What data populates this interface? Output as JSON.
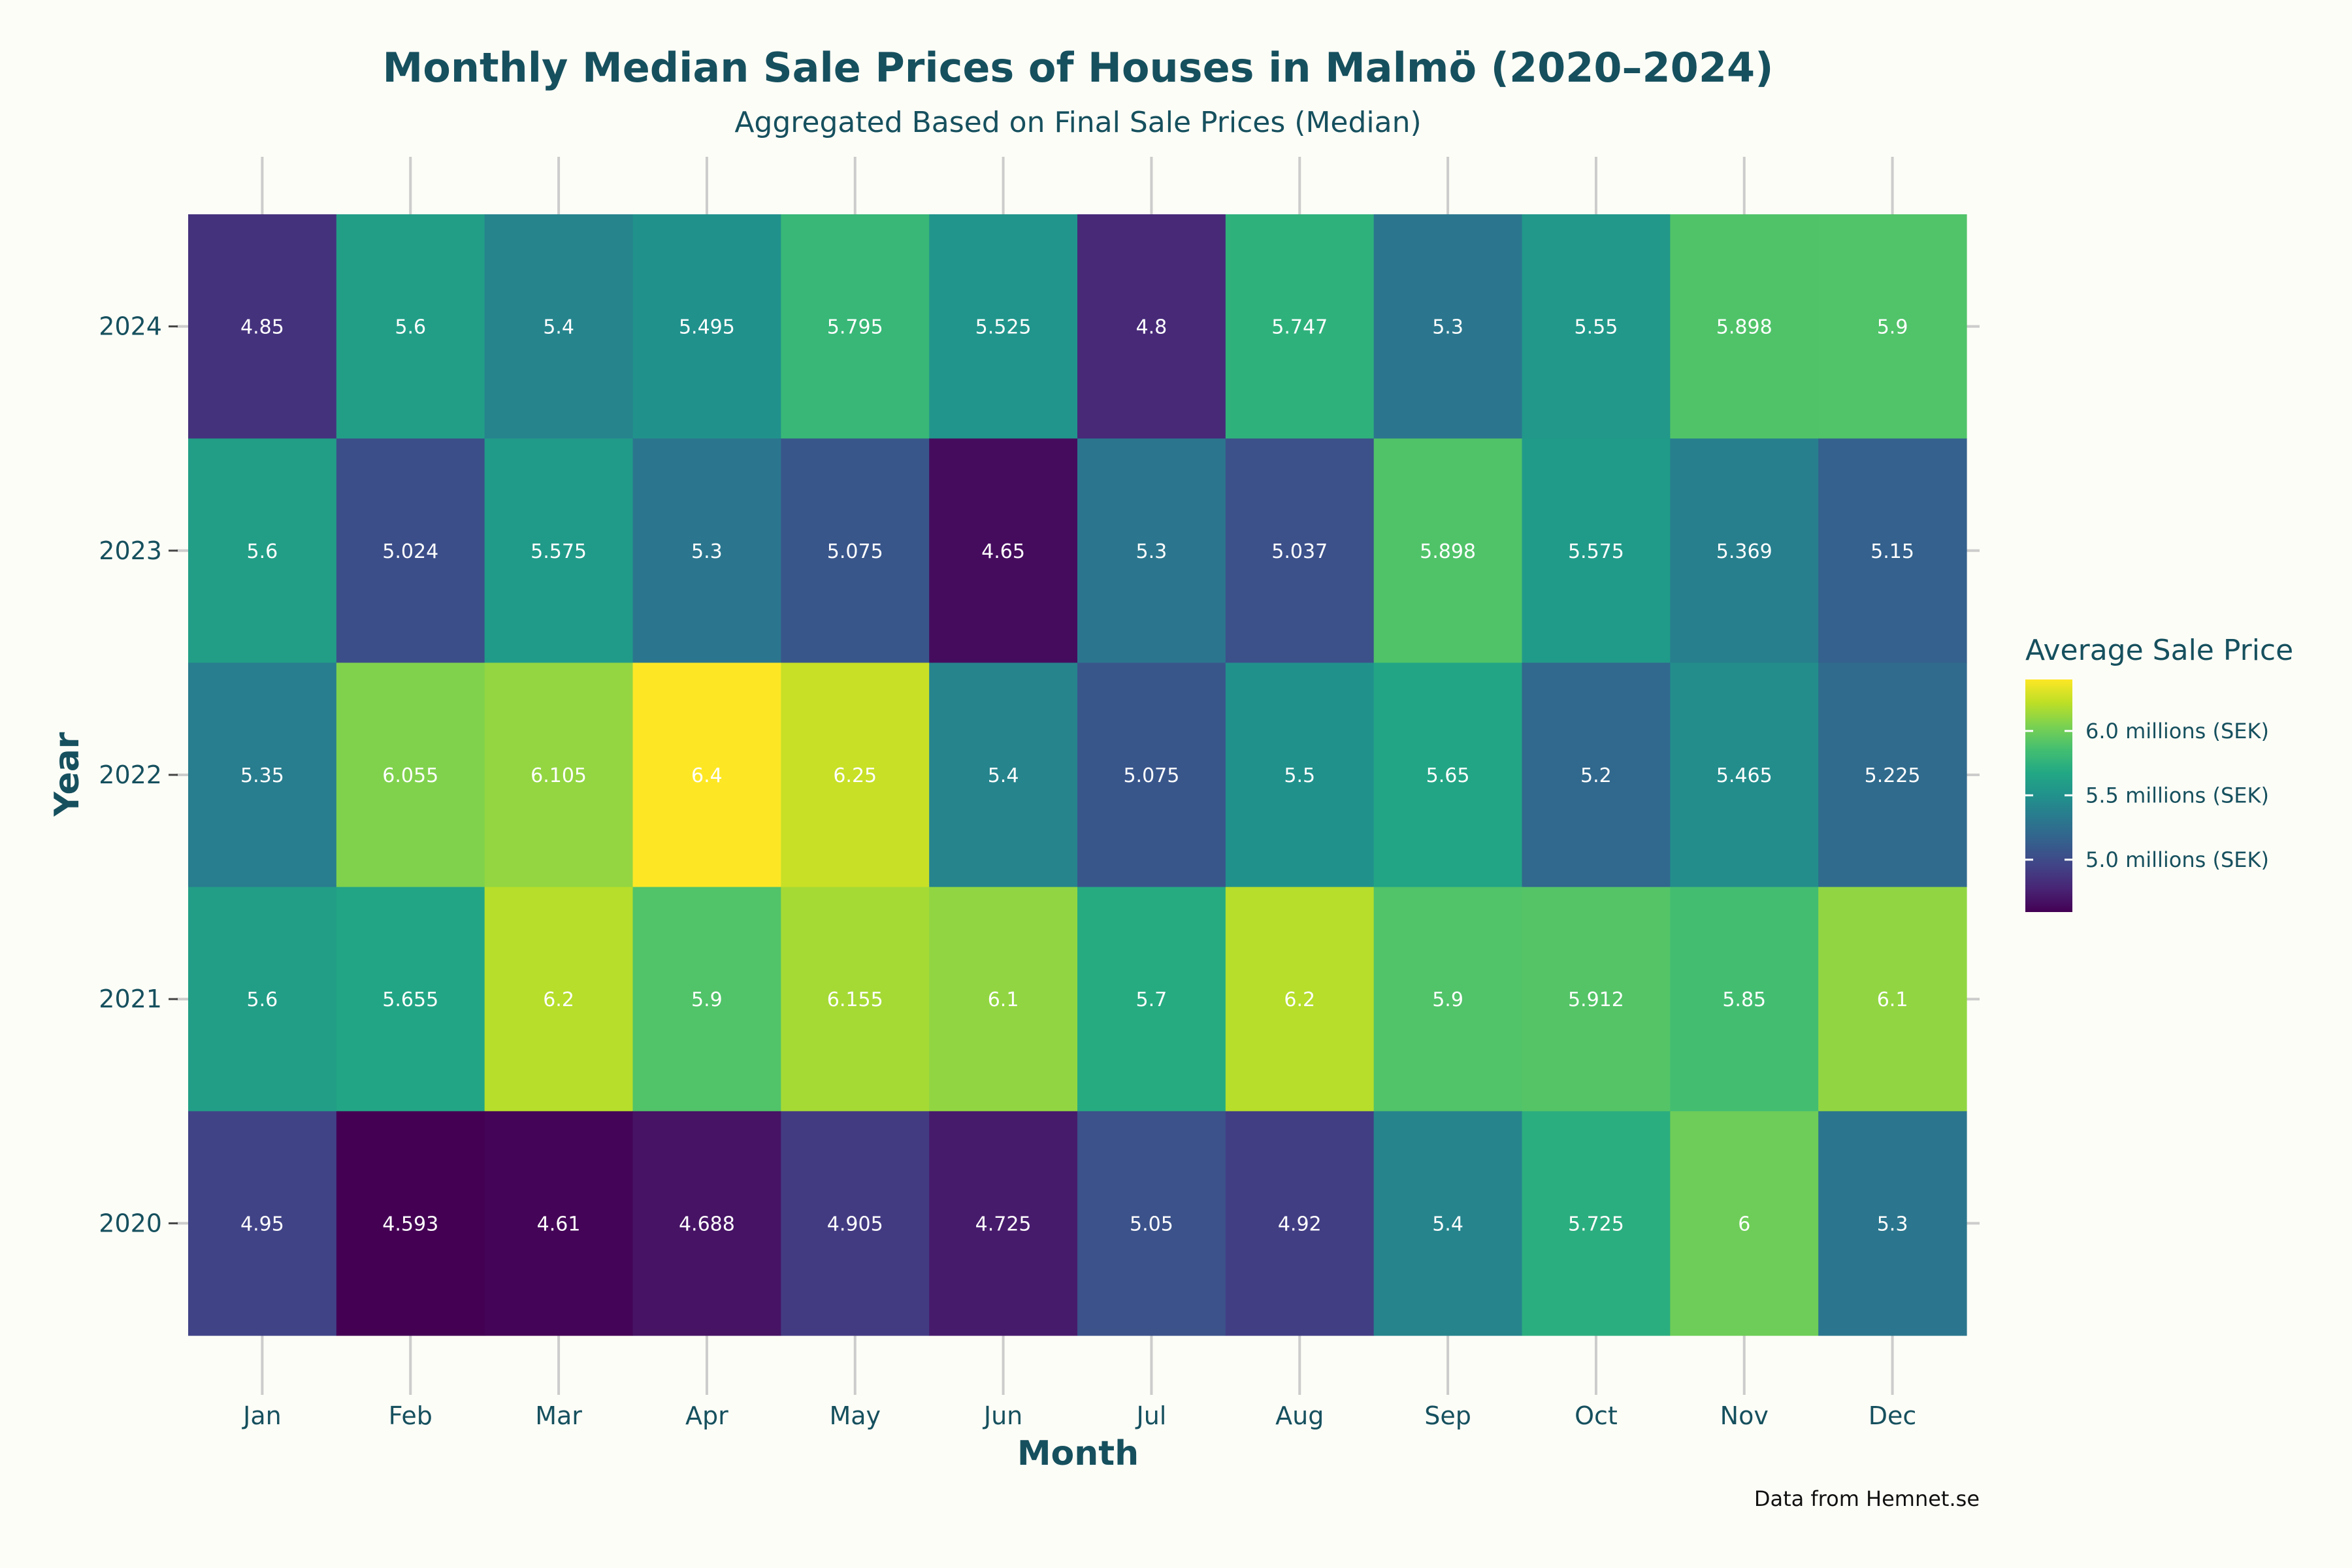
{
  "chart_data": {
    "type": "heatmap",
    "title": "Monthly Median Sale Prices of Houses in Malmö (2020–2024)",
    "subtitle": "Aggregated Based on Final Sale Prices (Median)",
    "xlabel": "Month",
    "ylabel": "Year",
    "x": [
      "Jan",
      "Feb",
      "Mar",
      "Apr",
      "May",
      "Jun",
      "Jul",
      "Aug",
      "Sep",
      "Oct",
      "Nov",
      "Dec"
    ],
    "y": [
      "2024",
      "2023",
      "2022",
      "2021",
      "2020"
    ],
    "values": [
      [
        4.85,
        5.6,
        5.4,
        5.495,
        5.795,
        5.525,
        4.8,
        5.747,
        5.3,
        5.55,
        5.898,
        5.9
      ],
      [
        5.6,
        5.024,
        5.575,
        5.3,
        5.075,
        4.65,
        5.3,
        5.037,
        5.898,
        5.575,
        5.369,
        5.15
      ],
      [
        5.35,
        6.055,
        6.105,
        6.4,
        6.25,
        5.4,
        5.075,
        5.5,
        5.65,
        5.2,
        5.465,
        5.225
      ],
      [
        5.6,
        5.655,
        6.2,
        5.9,
        6.155,
        6.1,
        5.7,
        6.2,
        5.9,
        5.912,
        5.85,
        6.1
      ],
      [
        4.95,
        4.593,
        4.61,
        4.688,
        4.905,
        4.725,
        5.05,
        4.92,
        5.4,
        5.725,
        6,
        5.3
      ]
    ],
    "cell_labels": [
      [
        "4.85",
        "5.6",
        "5.4",
        "5.495",
        "5.795",
        "5.525",
        "4.8",
        "5.747",
        "5.3",
        "5.55",
        "5.898",
        "5.9"
      ],
      [
        "5.6",
        "5.024",
        "5.575",
        "5.3",
        "5.075",
        "4.65",
        "5.3",
        "5.037",
        "5.898",
        "5.575",
        "5.369",
        "5.15"
      ],
      [
        "5.35",
        "6.055",
        "6.105",
        "6.4",
        "6.25",
        "5.4",
        "5.075",
        "5.5",
        "5.65",
        "5.2",
        "5.465",
        "5.225"
      ],
      [
        "5.6",
        "5.655",
        "6.2",
        "5.9",
        "6.155",
        "6.1",
        "5.7",
        "6.2",
        "5.9",
        "5.912",
        "5.85",
        "6.1"
      ],
      [
        "4.95",
        "4.593",
        "4.61",
        "4.688",
        "4.905",
        "4.725",
        "5.05",
        "4.92",
        "5.4",
        "5.725",
        "6",
        "5.3"
      ]
    ],
    "colorscale": "viridis",
    "color_range": [
      4.593,
      6.4
    ],
    "legend": {
      "title": "Average Sale Price",
      "placement": "right",
      "ticks": [
        {
          "value": 6.0,
          "label": "6.0 millions (SEK)"
        },
        {
          "value": 5.5,
          "label": "5.5 millions (SEK)"
        },
        {
          "value": 5.0,
          "label": "5.0 millions (SEK)"
        }
      ]
    },
    "caption": "Data from Hemnet.se",
    "grid": true
  }
}
